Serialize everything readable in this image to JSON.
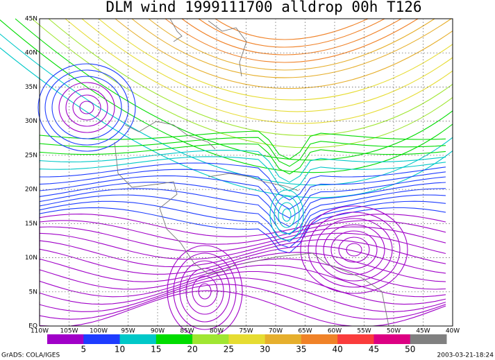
{
  "map": {
    "title": "DLM wind 1999111700 alldrop 00h T126",
    "lat_labels": [
      "EQ",
      "5N",
      "10N",
      "15N",
      "20N",
      "25N",
      "30N",
      "35N",
      "40N",
      "45N"
    ],
    "lon_labels": [
      "110W",
      "105W",
      "100W",
      "95W",
      "90W",
      "85W",
      "80W",
      "75W",
      "70W",
      "65W",
      "60W",
      "55W",
      "50W",
      "45W",
      "40W"
    ],
    "colorbar": {
      "labels": [
        "5",
        "10",
        "15",
        "20",
        "25",
        "30",
        "35",
        "40",
        "45",
        "50"
      ],
      "colors": [
        "#a000c8",
        "#1e3cff",
        "#00c8c8",
        "#00dc00",
        "#a0e632",
        "#e6dc32",
        "#e6af2d",
        "#f08228",
        "#fa3c3c",
        "#dc0082",
        "#808080"
      ]
    },
    "footer_left": "GrADS: COLA/IGES",
    "footer_right": "2003-03-21-18:24"
  }
}
